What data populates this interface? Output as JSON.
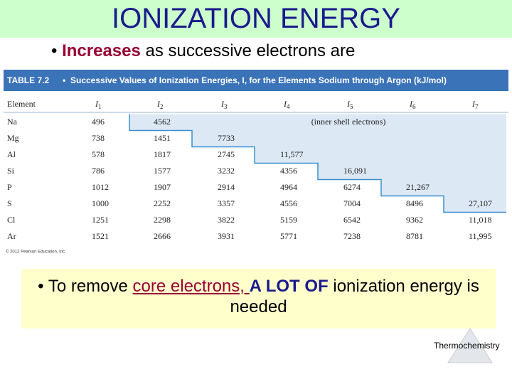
{
  "header": {
    "title": "IONIZATION ENERGY"
  },
  "bullet1": {
    "emphasis": "Increases",
    "rest": "as successive electrons are"
  },
  "table": {
    "caption_label": "TABLE 7.2",
    "caption": "Successive Values of Ionization Energies, I, for the Elements Sodium through Argon (kJ/mol)",
    "element_header": "Element",
    "columns": [
      {
        "letter": "I",
        "sub": "1"
      },
      {
        "letter": "I",
        "sub": "2"
      },
      {
        "letter": "I",
        "sub": "3"
      },
      {
        "letter": "I",
        "sub": "4"
      },
      {
        "letter": "I",
        "sub": "5"
      },
      {
        "letter": "I",
        "sub": "6"
      },
      {
        "letter": "I",
        "sub": "7"
      }
    ],
    "shaded_note": "(inner shell electrons)",
    "rows": [
      [
        "Na",
        "496",
        "4562"
      ],
      [
        "Mg",
        "738",
        "1451",
        "7733"
      ],
      [
        "Al",
        "578",
        "1817",
        "2745",
        "11,577"
      ],
      [
        "Si",
        "786",
        "1577",
        "3232",
        "4356",
        "16,091"
      ],
      [
        "P",
        "1012",
        "1907",
        "2914",
        "4964",
        "6274",
        "21,267"
      ],
      [
        "S",
        "1000",
        "2252",
        "3357",
        "4556",
        "7004",
        "8496",
        "27,107"
      ],
      [
        "Cl",
        "1251",
        "2298",
        "3822",
        "5159",
        "6542",
        "9362",
        "11,018"
      ],
      [
        "Ar",
        "1521",
        "2666",
        "3931",
        "5771",
        "7238",
        "8781",
        "11,995"
      ]
    ],
    "copyright": "© 2012 Pearson Education, Inc."
  },
  "box": {
    "parts": [
      "To remove ",
      "core electrons, ",
      "A LOT OF",
      " ionization energy is needed"
    ]
  },
  "footer": "Thermochemistry"
}
